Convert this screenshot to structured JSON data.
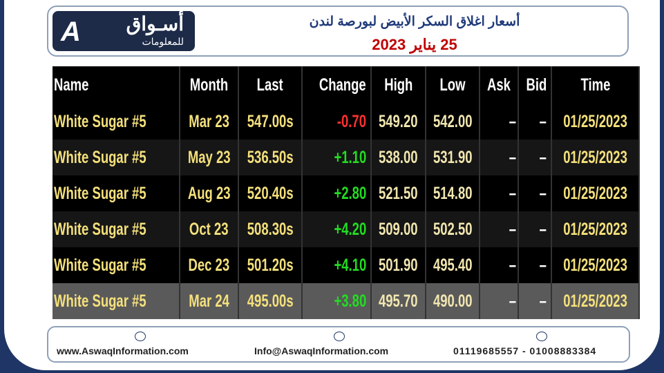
{
  "header": {
    "logo_title": "أسـواق",
    "logo_subtitle": "للمعلومات",
    "title": "أسعار اغلاق السكر الأبيض لبورصة لندن",
    "date": "25 يناير 2023"
  },
  "table": {
    "columns": [
      "Name",
      "Month",
      "Last",
      "Change",
      "High",
      "Low",
      "Ask",
      "Bid",
      "Time"
    ],
    "rows": [
      [
        "White Sugar #5",
        "Mar 23",
        "547.00s",
        "-0.70",
        "549.20",
        "542.00",
        "–",
        "–",
        "01/25/2023"
      ],
      [
        "White Sugar #5",
        "May 23",
        "536.50s",
        "+1.10",
        "538.00",
        "531.90",
        "–",
        "–",
        "01/25/2023"
      ],
      [
        "White Sugar #5",
        "Aug 23",
        "520.40s",
        "+2.80",
        "521.50",
        "514.80",
        "–",
        "–",
        "01/25/2023"
      ],
      [
        "White Sugar #5",
        "Oct 23",
        "508.30s",
        "+4.20",
        "509.00",
        "502.50",
        "–",
        "–",
        "01/25/2023"
      ],
      [
        "White Sugar #5",
        "Dec 23",
        "501.20s",
        "+4.10",
        "501.90",
        "495.40",
        "–",
        "–",
        "01/25/2023"
      ],
      [
        "White Sugar #5",
        "Mar 24",
        "495.00s",
        "+3.80",
        "495.70",
        "490.00",
        "–",
        "–",
        "01/25/2023"
      ]
    ]
  },
  "footer": {
    "website": "www.AswaqInformation.com",
    "email": "Info@AswaqInformation.com",
    "phone": "01119685557 - 01008883384"
  }
}
